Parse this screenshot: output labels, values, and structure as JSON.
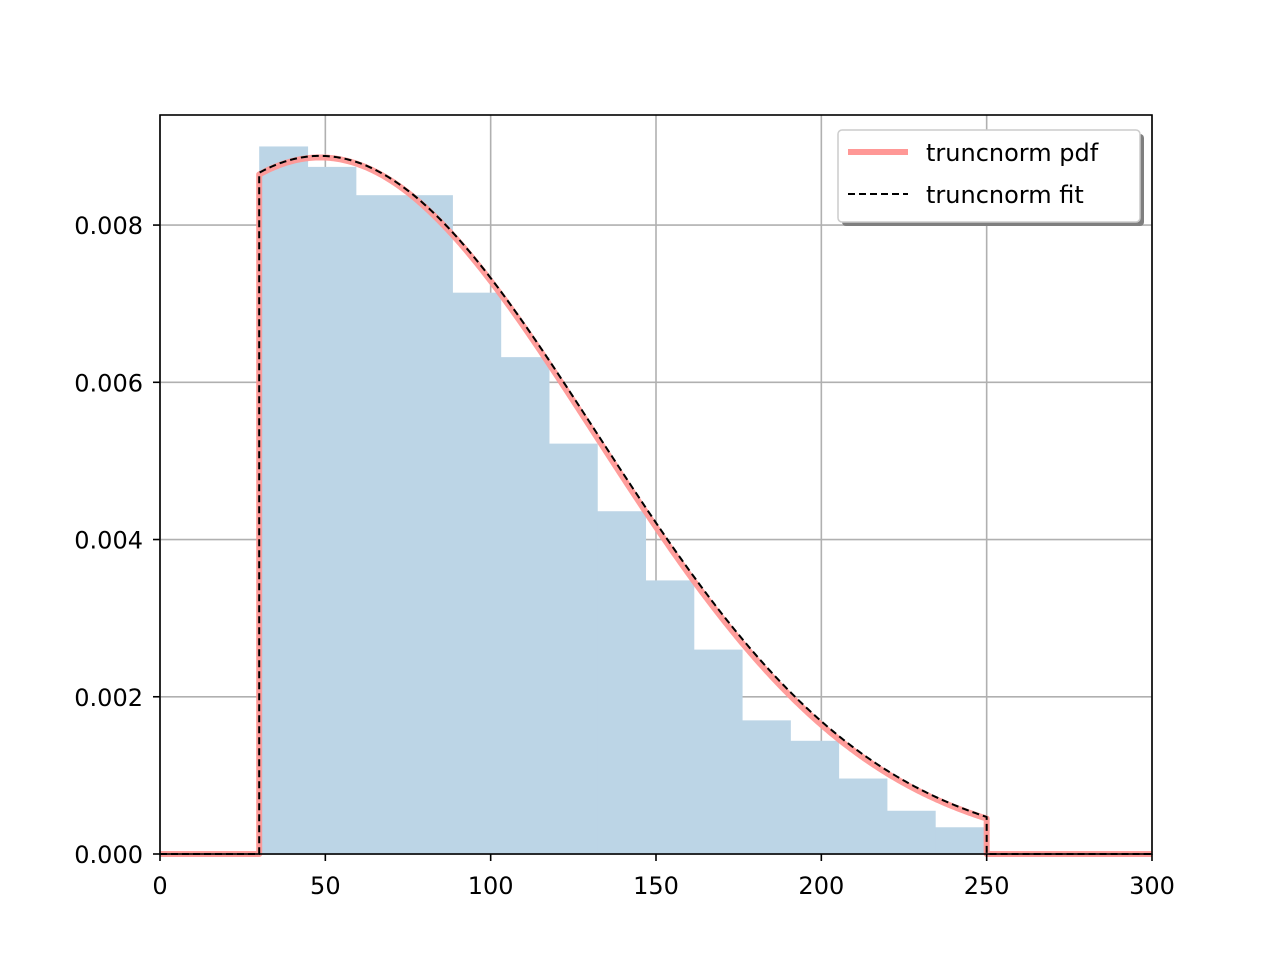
{
  "chart_data": {
    "type": "histogram",
    "title": "",
    "xlabel": "",
    "ylabel": "",
    "xlim": [
      0,
      300
    ],
    "ylim": [
      0,
      0.0094
    ],
    "grid": true,
    "legend_position": "top-right",
    "x_ticks": [
      0,
      50,
      100,
      150,
      200,
      250,
      300
    ],
    "x_tick_labels": [
      "0",
      "50",
      "100",
      "150",
      "200",
      "250",
      "300"
    ],
    "y_ticks": [
      0,
      0.002,
      0.004,
      0.006,
      0.008
    ],
    "y_tick_labels": [
      "0.000",
      "0.002",
      "0.004",
      "0.006",
      "0.008"
    ],
    "histogram": {
      "bin_edges": [
        30,
        44.6,
        59.2,
        73.8,
        88.4,
        103,
        117.6,
        132.2,
        146.8,
        161.4,
        176,
        190.6,
        205.2,
        219.8,
        234.4,
        249
      ],
      "densities": [
        0.009,
        0.00874,
        0.00838,
        0.00838,
        0.00714,
        0.00632,
        0.00522,
        0.00436,
        0.00348,
        0.0026,
        0.0017,
        0.00144,
        0.00096,
        0.00055,
        0.00034
      ],
      "color": "#bcd5e6"
    },
    "truncation": {
      "lower": 30,
      "upper": 250
    },
    "series": [
      {
        "name": "truncnorm pdf",
        "style": "solid",
        "color": "#ff9896",
        "curve": {
          "mu": 48.4,
          "sigma": 82.6,
          "peak": 0.00886
        }
      },
      {
        "name": "truncnorm fit",
        "style": "dashed",
        "color": "#000000",
        "curve": {
          "mu": 48.4,
          "sigma": 83.2,
          "peak": 0.00888
        }
      }
    ]
  }
}
